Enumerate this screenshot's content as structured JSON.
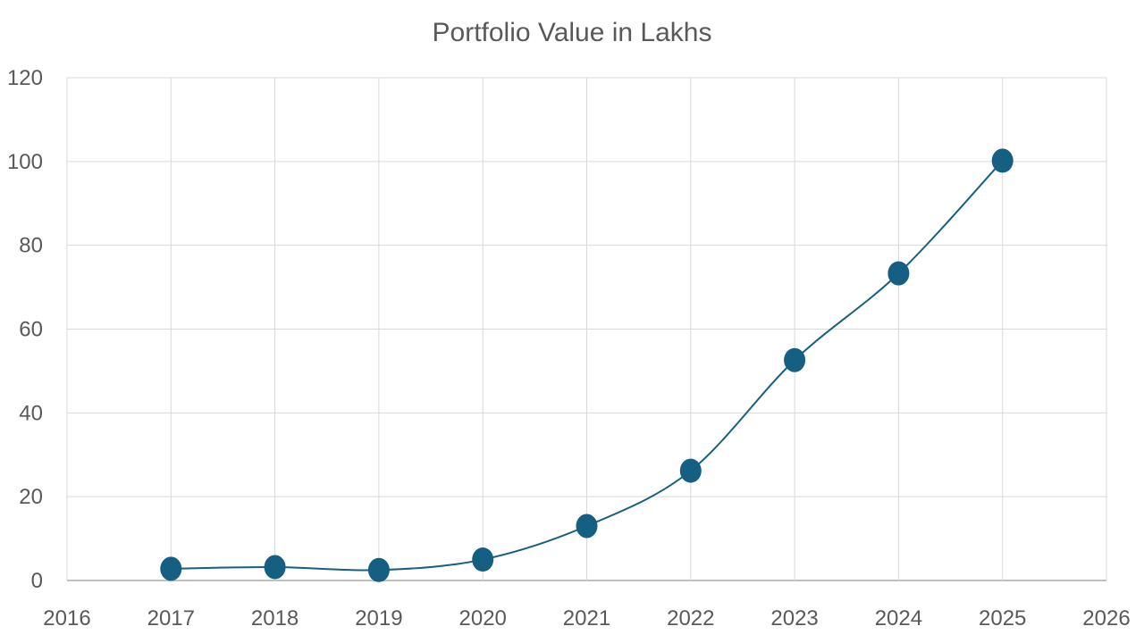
{
  "chart_data": {
    "type": "line",
    "title": "Portfolio Value in Lakhs",
    "xlabel": "",
    "ylabel": "",
    "xlim": [
      2016,
      2026
    ],
    "ylim": [
      0,
      120
    ],
    "x_ticks": [
      "2016",
      "2017",
      "2018",
      "2019",
      "2020",
      "2021",
      "2022",
      "2023",
      "2024",
      "2025",
      "2026"
    ],
    "y_ticks": [
      "0",
      "20",
      "40",
      "60",
      "80",
      "100",
      "120"
    ],
    "grid": true,
    "smooth": true,
    "series": [
      {
        "x": [
          2017,
          2018,
          2019,
          2020,
          2021,
          2022,
          2023,
          2024,
          2025
        ],
        "values": [
          2.8,
          3.2,
          2.5,
          5.0,
          13.0,
          26.2,
          52.6,
          73.3,
          100.2
        ],
        "color": "#156082"
      }
    ],
    "colors": {
      "grid": "#d9d9d9",
      "text": "#595959",
      "series": "#156082"
    }
  }
}
